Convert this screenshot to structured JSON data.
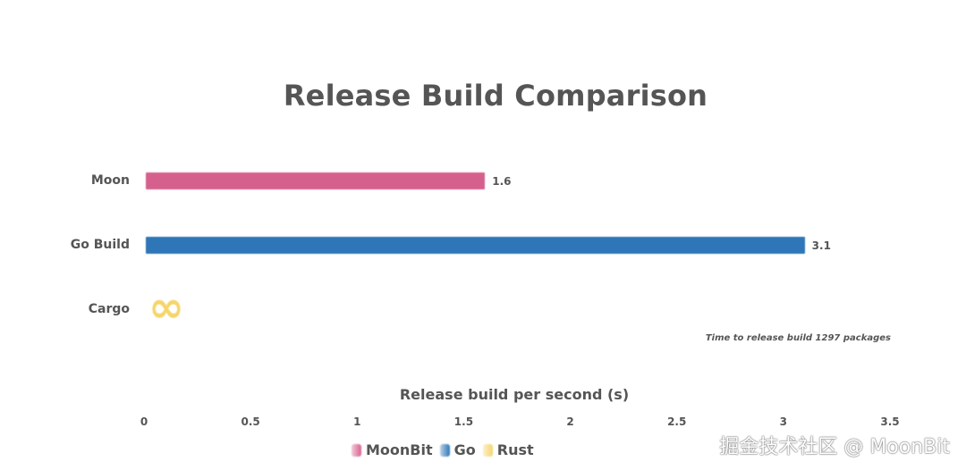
{
  "chart_data": {
    "type": "bar",
    "orientation": "horizontal",
    "title": "Release Build Comparison",
    "xlabel": "Release build per second  (s)",
    "ylabel": "",
    "xlim": [
      0,
      3.5
    ],
    "xticks": [
      "0",
      "0.5",
      "1",
      "1.5",
      "2",
      "2.5",
      "3",
      "3.5"
    ],
    "grid": false,
    "categories": [
      "Moon",
      "Go Build",
      "Cargo"
    ],
    "series": [
      {
        "name": "MoonBit",
        "category": "Moon",
        "value": 1.6,
        "label": "1.6",
        "color": "#d6608d"
      },
      {
        "name": "Go",
        "category": "Go Build",
        "value": 3.1,
        "label": "3.1",
        "color": "#2e76b7"
      },
      {
        "name": "Rust",
        "category": "Cargo",
        "value": null,
        "label": "∞",
        "color": "#f5d56b"
      }
    ],
    "annotation": "Time to release build 1297 packages",
    "legend": {
      "placement": "bottom",
      "items": [
        {
          "label": "MoonBit",
          "color": "#d6608d"
        },
        {
          "label": "Go",
          "color": "#2e76b7"
        },
        {
          "label": "Rust",
          "color": "#f5d56b"
        }
      ]
    }
  },
  "watermark": "掘金技术社区 @ MoonBit"
}
